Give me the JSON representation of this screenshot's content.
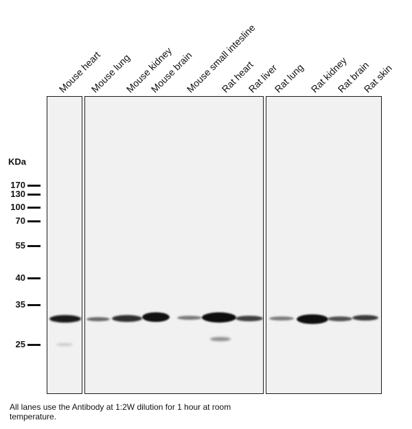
{
  "lane_labels": [
    "Mouse heart",
    "Mouse lung",
    "Mouse kidney",
    "Mouse brain",
    "Mouse small intesline",
    "Rat heart",
    "Rat liver",
    "Rat lung",
    "Rat kidney",
    "Rat brain",
    "Rat skin"
  ],
  "kda_label": "KDa",
  "markers": [
    "170",
    "130",
    "100",
    "70",
    "55",
    "40",
    "35",
    "25"
  ],
  "caption": "All lanes use the Antibody at 1:2W dilution for 1 hour at room temperature."
}
